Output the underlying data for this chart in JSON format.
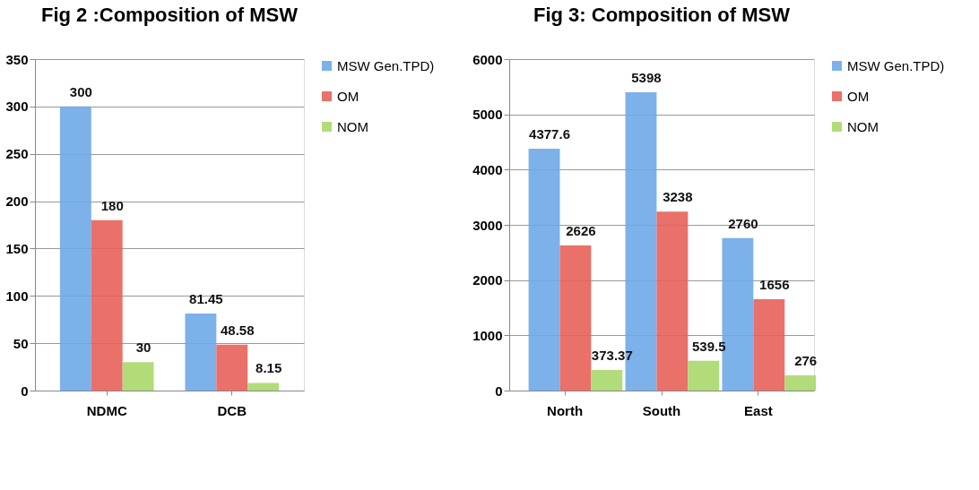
{
  "chart_data": [
    {
      "type": "bar",
      "title": "Fig 2 :Composition of MSW",
      "categories": [
        "NDMC",
        "DCB"
      ],
      "series": [
        {
          "name": "MSW Gen.TPD)",
          "color": "#6fa8e8",
          "values": [
            300,
            81.45
          ]
        },
        {
          "name": "OM",
          "color": "#e8605a",
          "values": [
            180,
            48.58
          ]
        },
        {
          "name": "NOM",
          "color": "#a8d86a",
          "values": [
            30,
            8.15
          ]
        }
      ],
      "ylim": [
        0,
        350
      ],
      "yticks": [
        0,
        50,
        100,
        150,
        200,
        250,
        300,
        350
      ],
      "grid": "y",
      "legend": "right",
      "data_labels": true
    },
    {
      "type": "bar",
      "title": "Fig 3: Composition of MSW",
      "categories": [
        "North",
        "South",
        "East"
      ],
      "series": [
        {
          "name": "MSW Gen.TPD)",
          "color": "#6fa8e8",
          "values": [
            4377.6,
            5398,
            2760
          ]
        },
        {
          "name": "OM",
          "color": "#e8605a",
          "values": [
            2626,
            3238,
            1656
          ]
        },
        {
          "name": "NOM",
          "color": "#a8d86a",
          "values": [
            373.37,
            539.5,
            276
          ]
        }
      ],
      "ylim": [
        0,
        6000
      ],
      "yticks": [
        0,
        1000,
        2000,
        3000,
        4000,
        5000,
        6000
      ],
      "grid": "y",
      "legend": "right",
      "data_labels": true
    }
  ]
}
